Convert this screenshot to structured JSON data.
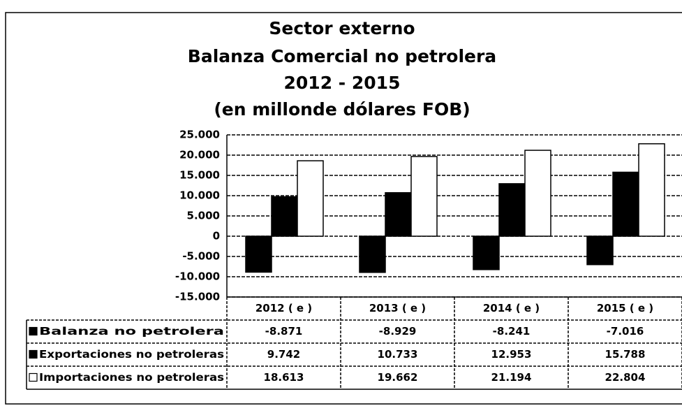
{
  "chart_data": {
    "type": "bar",
    "title": [
      "Sector externo",
      "Balanza Comercial no petrolera",
      "2012 - 2015"
    ],
    "subtitle": "(en millonde dólares FOB)",
    "categories": [
      "2012 ( e )",
      "2013 ( e )",
      "2014 ( e )",
      "2015 ( e )"
    ],
    "series": [
      {
        "name": "Balanza no petrolera",
        "color": "#000000",
        "values": [
          -8871,
          -8929,
          -8241,
          -7016
        ],
        "value_labels": [
          "-8.871",
          "-8.929",
          "-8.241",
          "-7.016"
        ]
      },
      {
        "name": "Exportaciones no petroleras",
        "color": "#000000",
        "values": [
          9742,
          10733,
          12953,
          15788
        ],
        "value_labels": [
          "9.742",
          "10.733",
          "12.953",
          "15.788"
        ]
      },
      {
        "name": "Importaciones no petroleras",
        "color": "#ffffff",
        "values": [
          18613,
          19662,
          21194,
          22804
        ],
        "value_labels": [
          "18.613",
          "19.662",
          "21.194",
          "22.804"
        ]
      }
    ],
    "ylim": [
      -15000,
      25000
    ],
    "yticks": [
      {
        "value": -15000,
        "label": "-15.000"
      },
      {
        "value": -10000,
        "label": "-10.000"
      },
      {
        "value": -5000,
        "label": "-5.000"
      },
      0,
      {
        "value": 5000,
        "label": "5.000"
      },
      {
        "value": 10000,
        "label": "10.000"
      },
      {
        "value": 15000,
        "label": "15.000"
      },
      {
        "value": 20000,
        "label": "20.000"
      },
      {
        "value": 25000,
        "label": "25.000"
      }
    ],
    "grid": true
  }
}
